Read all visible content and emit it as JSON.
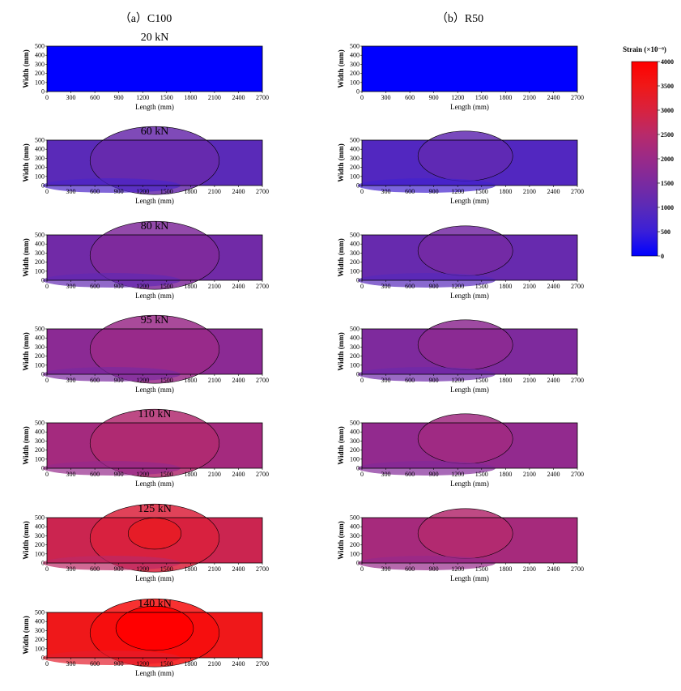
{
  "figure": {
    "column_titles": [
      "（a）C100",
      "（b）R50"
    ],
    "colorbar": {
      "title": "Strain (×10⁻⁶)",
      "min": 0,
      "max": 4000,
      "ticks": [
        0,
        500,
        1000,
        1500,
        2000,
        2500,
        3000,
        3500,
        4000
      ],
      "colors": [
        "#0000ff",
        "#3a1fd8",
        "#5a2ab8",
        "#7a2aa0",
        "#9a2a88",
        "#b82a6a",
        "#d8223f",
        "#f01818",
        "#ff0000"
      ]
    }
  },
  "chart_data": [
    {
      "type": "heatmap",
      "specimen": "C100",
      "load": "20 kN",
      "level": 0.02,
      "xlabel": "Length (mm)",
      "ylabel": "Width (mm)",
      "xlim": [
        0,
        2700
      ],
      "ylim": [
        0,
        500
      ],
      "xticks": [
        0,
        300,
        600,
        900,
        1200,
        1500,
        1800,
        2100,
        2400,
        2700
      ],
      "yticks": [
        0,
        100,
        200,
        300,
        400,
        500
      ]
    },
    {
      "type": "heatmap",
      "specimen": "R50",
      "load": "",
      "level": 0.02,
      "xlabel": "Length (mm)",
      "ylabel": "Width (mm)",
      "xlim": [
        0,
        2700
      ],
      "ylim": [
        0,
        500
      ],
      "xticks": [
        0,
        300,
        600,
        900,
        1200,
        1500,
        1800,
        2100,
        2400,
        2700
      ],
      "yticks": [
        0,
        100,
        200,
        300,
        400,
        500
      ]
    },
    {
      "type": "heatmap",
      "specimen": "C100",
      "load": "60 kN",
      "level": 0.33,
      "xlabel": "Length (mm)",
      "ylabel": "Width (mm)",
      "xlim": [
        0,
        2700
      ],
      "ylim": [
        0,
        500
      ],
      "xticks": [
        0,
        300,
        600,
        900,
        1200,
        1500,
        1800,
        2100,
        2400,
        2700
      ],
      "yticks": [
        0,
        100,
        200,
        300,
        400,
        500
      ]
    },
    {
      "type": "heatmap",
      "specimen": "R50",
      "load": "",
      "level": 0.3,
      "xlabel": "Length (mm)",
      "ylabel": "Width (mm)",
      "xlim": [
        0,
        2700
      ],
      "ylim": [
        0,
        500
      ],
      "xticks": [
        0,
        300,
        600,
        900,
        1200,
        1500,
        1800,
        2100,
        2400,
        2700
      ],
      "yticks": [
        0,
        100,
        200,
        300,
        400,
        500
      ]
    },
    {
      "type": "heatmap",
      "specimen": "C100",
      "load": "80 kN",
      "level": 0.42,
      "xlabel": "Length (mm)",
      "ylabel": "Width (mm)",
      "xlim": [
        0,
        2700
      ],
      "ylim": [
        0,
        500
      ],
      "xticks": [
        0,
        300,
        600,
        900,
        1200,
        1500,
        1800,
        2100,
        2400,
        2700
      ],
      "yticks": [
        0,
        100,
        200,
        300,
        400,
        500
      ]
    },
    {
      "type": "heatmap",
      "specimen": "R50",
      "load": "",
      "level": 0.38,
      "xlabel": "Length (mm)",
      "ylabel": "Width (mm)",
      "xlim": [
        0,
        2700
      ],
      "ylim": [
        0,
        500
      ],
      "xticks": [
        0,
        300,
        600,
        900,
        1200,
        1500,
        1800,
        2100,
        2400,
        2700
      ],
      "yticks": [
        0,
        100,
        200,
        300,
        400,
        500
      ]
    },
    {
      "type": "heatmap",
      "specimen": "C100",
      "load": "95 kN",
      "level": 0.52,
      "xlabel": "Length (mm)",
      "ylabel": "Width (mm)",
      "xlim": [
        0,
        2700
      ],
      "ylim": [
        0,
        500
      ],
      "xticks": [
        0,
        300,
        600,
        900,
        1200,
        1500,
        1800,
        2100,
        2400,
        2700
      ],
      "yticks": [
        0,
        100,
        200,
        300,
        400,
        500
      ]
    },
    {
      "type": "heatmap",
      "specimen": "R50",
      "load": "",
      "level": 0.47,
      "xlabel": "Length (mm)",
      "ylabel": "Width (mm)",
      "xlim": [
        0,
        2700
      ],
      "ylim": [
        0,
        500
      ],
      "xticks": [
        0,
        300,
        600,
        900,
        1200,
        1500,
        1800,
        2100,
        2400,
        2700
      ],
      "yticks": [
        0,
        100,
        200,
        300,
        400,
        500
      ]
    },
    {
      "type": "heatmap",
      "specimen": "C100",
      "load": "110 kN",
      "level": 0.62,
      "xlabel": "Length (mm)",
      "ylabel": "Width (mm)",
      "xlim": [
        0,
        2700
      ],
      "ylim": [
        0,
        500
      ],
      "xticks": [
        0,
        300,
        600,
        900,
        1200,
        1500,
        1800,
        2100,
        2400,
        2700
      ],
      "yticks": [
        0,
        100,
        200,
        300,
        400,
        500
      ]
    },
    {
      "type": "heatmap",
      "specimen": "R50",
      "load": "",
      "level": 0.55,
      "xlabel": "Length (mm)",
      "ylabel": "Width (mm)",
      "xlim": [
        0,
        2700
      ],
      "ylim": [
        0,
        500
      ],
      "xticks": [
        0,
        300,
        600,
        900,
        1200,
        1500,
        1800,
        2100,
        2400,
        2700
      ],
      "yticks": [
        0,
        100,
        200,
        300,
        400,
        500
      ]
    },
    {
      "type": "heatmap",
      "specimen": "C100",
      "load": "125 kN",
      "level": 0.78,
      "xlabel": "Length (mm)",
      "ylabel": "Width (mm)",
      "xlim": [
        0,
        2700
      ],
      "ylim": [
        0,
        500
      ],
      "xticks": [
        0,
        300,
        600,
        900,
        1200,
        1500,
        1800,
        2100,
        2400,
        2700
      ],
      "yticks": [
        0,
        100,
        200,
        300,
        400,
        500
      ]
    },
    {
      "type": "heatmap",
      "specimen": "R50",
      "load": "",
      "level": 0.63,
      "xlabel": "Length (mm)",
      "ylabel": "Width (mm)",
      "xlim": [
        0,
        2700
      ],
      "ylim": [
        0,
        500
      ],
      "xticks": [
        0,
        300,
        600,
        900,
        1200,
        1500,
        1800,
        2100,
        2400,
        2700
      ],
      "yticks": [
        0,
        100,
        200,
        300,
        400,
        500
      ]
    },
    {
      "type": "heatmap",
      "specimen": "C100",
      "load": "140 kN",
      "level": 0.95,
      "xlabel": "Length (mm)",
      "ylabel": "Width (mm)",
      "xlim": [
        0,
        2700
      ],
      "ylim": [
        0,
        500
      ],
      "xticks": [
        0,
        300,
        600,
        900,
        1200,
        1500,
        1800,
        2100,
        2400,
        2700
      ],
      "yticks": [
        0,
        100,
        200,
        300,
        400,
        500
      ]
    }
  ]
}
